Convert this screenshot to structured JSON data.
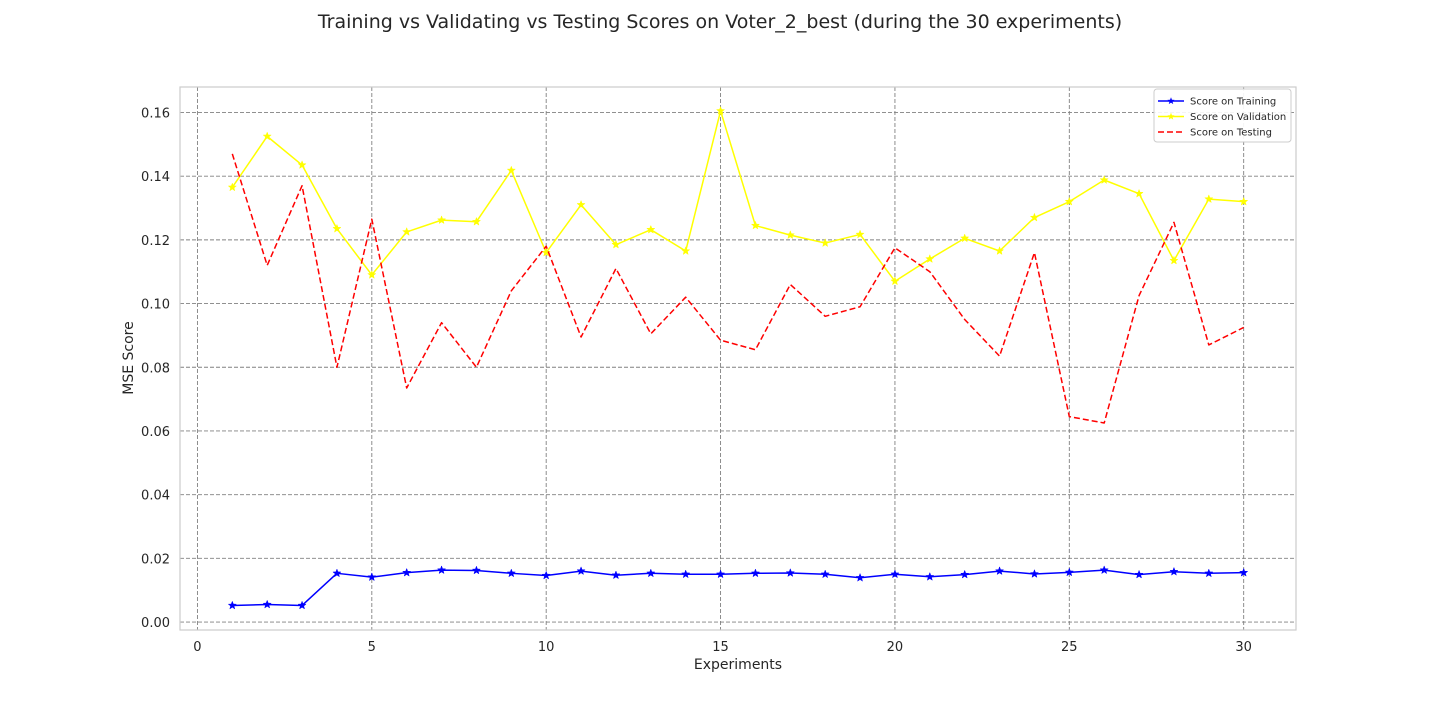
{
  "chart_data": {
    "type": "line",
    "title": "Training vs Validating vs Testing Scores on Voter_2_best (during the 30 experiments)",
    "xlabel": "Experiments",
    "ylabel": "MSE Score",
    "xlim": [
      -0.5,
      31.5
    ],
    "ylim": [
      -0.0025,
      0.168
    ],
    "xticks": [
      0,
      5,
      10,
      15,
      20,
      25,
      30
    ],
    "yticks": [
      0.0,
      0.02,
      0.04,
      0.06,
      0.08,
      0.1,
      0.12,
      0.14,
      0.16
    ],
    "ytick_labels": [
      "0.00",
      "0.02",
      "0.04",
      "0.06",
      "0.08",
      "0.10",
      "0.12",
      "0.14",
      "0.16"
    ],
    "grid": true,
    "legend_position": "top-right",
    "x": [
      1,
      2,
      3,
      4,
      5,
      6,
      7,
      8,
      9,
      10,
      11,
      12,
      13,
      14,
      15,
      16,
      17,
      18,
      19,
      20,
      21,
      22,
      23,
      24,
      25,
      26,
      27,
      28,
      29,
      30
    ],
    "series": [
      {
        "name": "Score on Training",
        "color": "#0000ff",
        "style": "solid",
        "marker": "star",
        "values": [
          0.0052,
          0.0055,
          0.0052,
          0.0153,
          0.0141,
          0.0155,
          0.0163,
          0.0162,
          0.0153,
          0.0146,
          0.016,
          0.0147,
          0.0153,
          0.015,
          0.015,
          0.0153,
          0.0154,
          0.015,
          0.0139,
          0.015,
          0.0142,
          0.0149,
          0.016,
          0.0151,
          0.0156,
          0.0163,
          0.0149,
          0.0158,
          0.0153,
          0.0155
        ]
      },
      {
        "name": "Score on Validation",
        "color": "#ffff00",
        "style": "solid",
        "marker": "star",
        "values": [
          0.1365,
          0.1525,
          0.1435,
          0.1235,
          0.109,
          0.1225,
          0.1262,
          0.1257,
          0.1418,
          0.116,
          0.131,
          0.1185,
          0.1232,
          0.1165,
          0.1605,
          0.1245,
          0.1215,
          0.119,
          0.1217,
          0.107,
          0.114,
          0.1205,
          0.1165,
          0.127,
          0.132,
          0.1388,
          0.1345,
          0.1135,
          0.1328,
          0.132
        ]
      },
      {
        "name": "Score on Testing",
        "color": "#ff0000",
        "style": "dashed",
        "marker": "none",
        "values": [
          0.147,
          0.112,
          0.137,
          0.08,
          0.1265,
          0.0735,
          0.094,
          0.08,
          0.104,
          0.118,
          0.0895,
          0.111,
          0.0905,
          0.102,
          0.0885,
          0.0855,
          0.106,
          0.096,
          0.099,
          0.1175,
          0.11,
          0.095,
          0.0835,
          0.116,
          0.0645,
          0.0625,
          0.1025,
          0.1255,
          0.087,
          0.0925
        ]
      }
    ]
  }
}
